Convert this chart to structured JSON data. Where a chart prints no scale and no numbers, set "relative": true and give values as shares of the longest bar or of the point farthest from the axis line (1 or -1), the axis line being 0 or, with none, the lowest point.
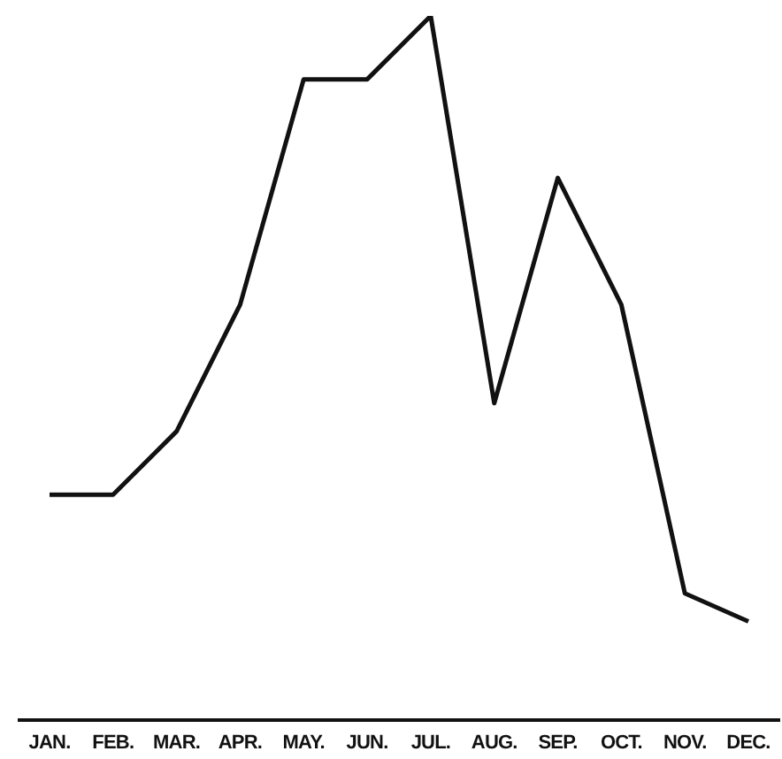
{
  "chart_data": {
    "type": "line",
    "relative": true,
    "categories": [
      "JAN.",
      "FEB.",
      "MAR.",
      "APR.",
      "MAY.",
      "JUN.",
      "JUL.",
      "AUG.",
      "SEP.",
      "OCT.",
      "NOV.",
      "DEC."
    ],
    "series": [
      {
        "color": "#111111",
        "values": [
          0.32,
          0.32,
          0.41,
          0.59,
          0.91,
          0.91,
          1,
          0.45,
          0.77,
          0.59,
          0.18,
          0.14
        ]
      }
    ],
    "marker": "none",
    "line_style": "solid",
    "grid": false,
    "legend": false
  }
}
